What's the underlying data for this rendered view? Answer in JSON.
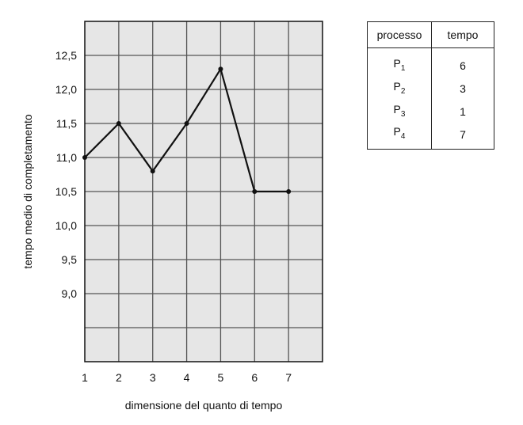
{
  "chart_data": {
    "type": "line",
    "title": "",
    "xlabel": "dimensione del quanto di tempo",
    "ylabel": "tempo medio di completamento",
    "x": [
      1,
      2,
      3,
      4,
      5,
      6,
      7
    ],
    "series": [
      {
        "values": [
          11.0,
          11.5,
          10.8,
          11.5,
          12.3,
          10.5,
          10.5
        ]
      }
    ],
    "xlim": [
      1,
      8
    ],
    "ylim": [
      8.0,
      13.0
    ],
    "x_ticks": [
      "1",
      "2",
      "3",
      "4",
      "5",
      "6",
      "7"
    ],
    "y_ticks": [
      {
        "value": 9.0,
        "label": "9,0"
      },
      {
        "value": 9.5,
        "label": "9,5"
      },
      {
        "value": 10.0,
        "label": "10,0"
      },
      {
        "value": 10.5,
        "label": "10,5"
      },
      {
        "value": 11.0,
        "label": "11,0"
      },
      {
        "value": 11.5,
        "label": "11,5"
      },
      {
        "value": 12.0,
        "label": "12,0"
      },
      {
        "value": 12.5,
        "label": "12,5"
      }
    ],
    "grid": true,
    "colors": {
      "plot_background": "#e6e6e6",
      "grid": "#555555",
      "line": "#111111"
    }
  },
  "table": {
    "headers": [
      "processo",
      "tempo"
    ],
    "rows": [
      {
        "name": "P",
        "sub": "1",
        "value": "6"
      },
      {
        "name": "P",
        "sub": "2",
        "value": "3"
      },
      {
        "name": "P",
        "sub": "3",
        "value": "1"
      },
      {
        "name": "P",
        "sub": "4",
        "value": "7"
      }
    ]
  }
}
